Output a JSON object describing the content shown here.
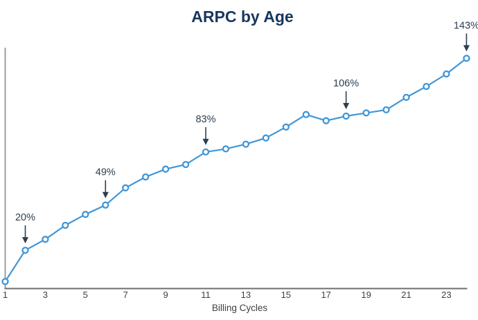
{
  "chart_data": {
    "type": "line",
    "title": "ARPC by Age",
    "xlabel": "Billing Cycles",
    "ylabel": "",
    "x": [
      1,
      2,
      3,
      4,
      5,
      6,
      7,
      8,
      9,
      10,
      11,
      12,
      13,
      14,
      15,
      16,
      17,
      18,
      19,
      20,
      21,
      22,
      23,
      24
    ],
    "values": [
      0,
      20,
      27,
      36,
      43,
      49,
      60,
      67,
      72,
      75,
      83,
      85,
      88,
      92,
      99,
      107,
      103,
      106,
      108,
      110,
      118,
      125,
      133,
      143
    ],
    "values_unit": "%",
    "x_tick_labels": [
      "1",
      "3",
      "5",
      "7",
      "9",
      "11",
      "13",
      "15",
      "17",
      "19",
      "21",
      "23"
    ],
    "x_ticks_at": [
      1,
      3,
      5,
      7,
      9,
      11,
      13,
      15,
      17,
      19,
      21,
      23
    ],
    "annotations": [
      {
        "x": 2,
        "label": "20%"
      },
      {
        "x": 6,
        "label": "49%"
      },
      {
        "x": 11,
        "label": "83%"
      },
      {
        "x": 18,
        "label": "106%"
      },
      {
        "x": 24,
        "label": "143%"
      }
    ],
    "xlim": [
      1,
      24
    ],
    "ylim": [
      0,
      150
    ],
    "grid": "off",
    "legend": "none",
    "y_axis_labels_visible": false,
    "colors": {
      "series_line": "#4096d6",
      "marker_fill": "#ffffff",
      "marker_stroke": "#4096d6",
      "title": "#17375e",
      "annotation": "#2d3e4e",
      "x_axis_line": "#6d6d6d",
      "y_axis_line": "#9c9c9c",
      "tick_text": "#3f3f3f",
      "axis_title_text": "#3f3f3f"
    }
  }
}
